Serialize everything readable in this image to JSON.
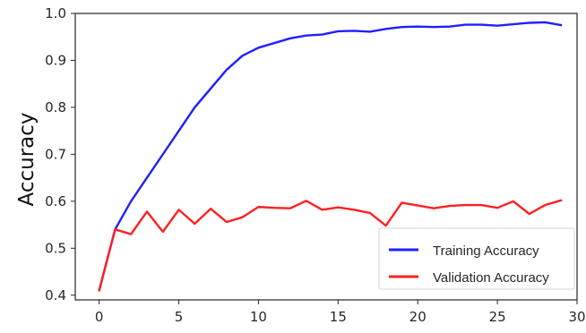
{
  "chart_data": {
    "type": "line",
    "title": "",
    "xlabel": "",
    "ylabel": "Accuracy",
    "xlim": [
      -1.5,
      30
    ],
    "ylim": [
      0.39,
      1.0
    ],
    "xticks": [
      0,
      5,
      10,
      15,
      20,
      25,
      30
    ],
    "yticks": [
      0.4,
      0.5,
      0.6,
      0.7,
      0.8,
      0.9,
      1.0
    ],
    "xtick_labels": [
      "0",
      "5",
      "10",
      "15",
      "20",
      "25",
      "30"
    ],
    "ytick_labels": [
      "0.4",
      "0.5",
      "0.6",
      "0.7",
      "0.8",
      "0.9",
      "1.0"
    ],
    "grid": false,
    "legend_position": "lower-right",
    "x": [
      0,
      1,
      2,
      3,
      4,
      5,
      6,
      7,
      8,
      9,
      10,
      11,
      12,
      13,
      14,
      15,
      16,
      17,
      18,
      19,
      20,
      21,
      22,
      23,
      24,
      25,
      26,
      27,
      28,
      29
    ],
    "series": [
      {
        "name": "Training Accuracy",
        "color": "#1f1fff",
        "values": [
          0.41,
          0.54,
          0.6,
          0.65,
          0.7,
          0.75,
          0.8,
          0.84,
          0.88,
          0.91,
          0.927,
          0.937,
          0.947,
          0.953,
          0.955,
          0.962,
          0.963,
          0.961,
          0.967,
          0.971,
          0.972,
          0.971,
          0.972,
          0.976,
          0.976,
          0.974,
          0.977,
          0.98,
          0.981,
          0.975
        ]
      },
      {
        "name": "Validation Accuracy",
        "color": "#ff2020",
        "values": [
          0.41,
          0.54,
          0.53,
          0.578,
          0.535,
          0.582,
          0.552,
          0.584,
          0.556,
          0.566,
          0.588,
          0.586,
          0.585,
          0.601,
          0.582,
          0.587,
          0.582,
          0.575,
          0.548,
          0.597,
          0.591,
          0.585,
          0.59,
          0.592,
          0.592,
          0.586,
          0.6,
          0.573,
          0.592,
          0.602
        ]
      }
    ]
  }
}
